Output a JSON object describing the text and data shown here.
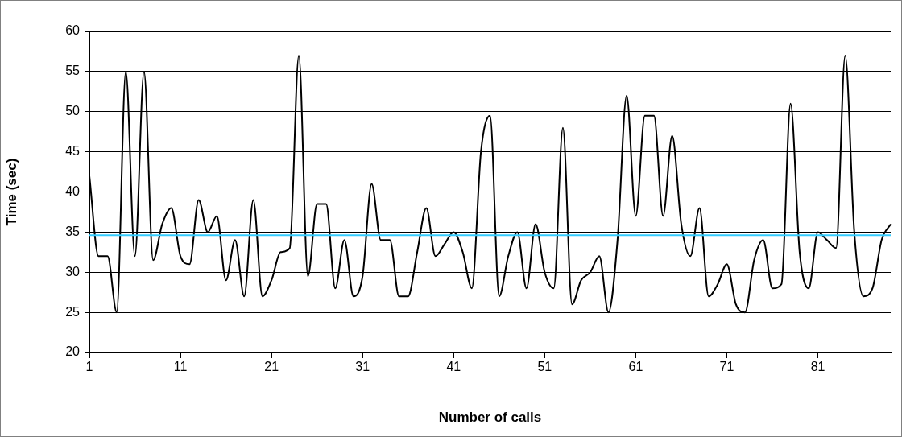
{
  "chart_data": {
    "type": "line",
    "xlabel": "Number of calls",
    "ylabel": "Time (sec)",
    "categories": [
      "1",
      null,
      null,
      null,
      null,
      null,
      null,
      null,
      null,
      null,
      "11",
      null,
      null,
      null,
      null,
      null,
      null,
      null,
      null,
      null,
      "21",
      null,
      null,
      null,
      null,
      null,
      null,
      null,
      null,
      null,
      "31",
      null,
      null,
      null,
      null,
      null,
      null,
      null,
      null,
      null,
      "41",
      null,
      null,
      null,
      null,
      null,
      null,
      null,
      null,
      null,
      "51",
      null,
      null,
      null,
      null,
      null,
      null,
      null,
      null,
      null,
      "61",
      null,
      null,
      null,
      null,
      null,
      null,
      null,
      null,
      null,
      "71",
      null,
      null,
      null,
      null,
      null,
      null,
      null,
      null,
      null,
      "81",
      null,
      null,
      null,
      null,
      null,
      null,
      null,
      null
    ],
    "series": [
      {
        "color": "#000000",
        "values": [
          42,
          32,
          32,
          25,
          55,
          32,
          55,
          31.5,
          36,
          38,
          32,
          31,
          39,
          35,
          37,
          29,
          34,
          27,
          39,
          27,
          29,
          32.5,
          33,
          57,
          29.5,
          38.5,
          38.5,
          28,
          34,
          27,
          29.5,
          41,
          34,
          34,
          27,
          27,
          32.5,
          38,
          32,
          33.5,
          35,
          32.5,
          28,
          45,
          49.5,
          27,
          32,
          35,
          28,
          36,
          30,
          28,
          48,
          26,
          29,
          30,
          32,
          25,
          34,
          52,
          37,
          49.5,
          49.5,
          37,
          47,
          36,
          32,
          38,
          27,
          28.5,
          31,
          26,
          25,
          31.5,
          34,
          28,
          28.5,
          51,
          32.5,
          28,
          35,
          34,
          33,
          57,
          35,
          27,
          28,
          34,
          36
        ]
      }
    ],
    "ylim": [
      20,
      60
    ],
    "yticks": [
      20,
      25,
      30,
      35,
      40,
      45,
      50,
      55,
      60
    ],
    "grid": "y",
    "marker": "none",
    "line_style": "solid",
    "ref_lines": [
      {
        "axis": "y",
        "value": 34.6,
        "color": "#33ccff"
      }
    ]
  }
}
